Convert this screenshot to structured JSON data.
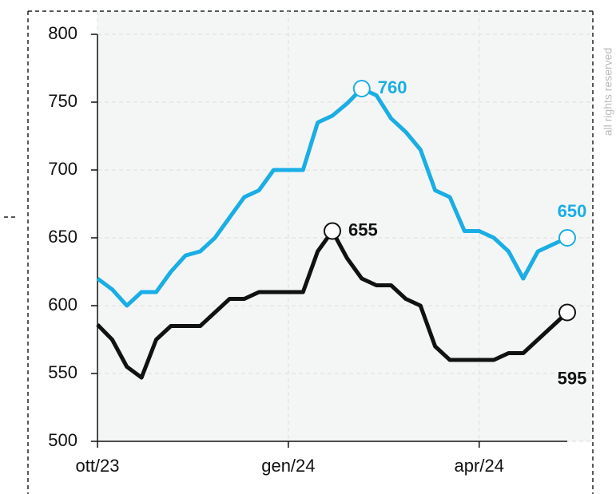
{
  "chart_data": {
    "type": "line",
    "categories": [
      "ott/23",
      null,
      null,
      null,
      null,
      null,
      null,
      null,
      null,
      null,
      null,
      null,
      null,
      "gen/24",
      null,
      null,
      null,
      null,
      null,
      null,
      null,
      null,
      null,
      null,
      null,
      null,
      "apr/24",
      null,
      null,
      null,
      null,
      null,
      null
    ],
    "series": [
      {
        "color": "#1aaee5",
        "values": [
          620,
          612,
          600,
          610,
          610,
          625,
          637,
          640,
          650,
          665,
          680,
          685,
          700,
          700,
          700,
          735,
          740,
          749,
          760,
          755,
          738,
          728,
          715,
          685,
          680,
          655,
          655,
          650,
          640,
          620,
          640,
          645,
          650
        ]
      },
      {
        "color": "#111111",
        "values": [
          586,
          575,
          555,
          547,
          575,
          585,
          585,
          585,
          595,
          605,
          605,
          610,
          610,
          610,
          610,
          640,
          655,
          635,
          620,
          615,
          615,
          605,
          600,
          570,
          560,
          560,
          560,
          560,
          565,
          565,
          575,
          585,
          595
        ]
      }
    ],
    "ylim": [
      500,
      800
    ],
    "yticks": [
      500,
      550,
      600,
      650,
      700,
      750,
      800
    ],
    "grid": true,
    "side_note": "all rights reserved"
  }
}
